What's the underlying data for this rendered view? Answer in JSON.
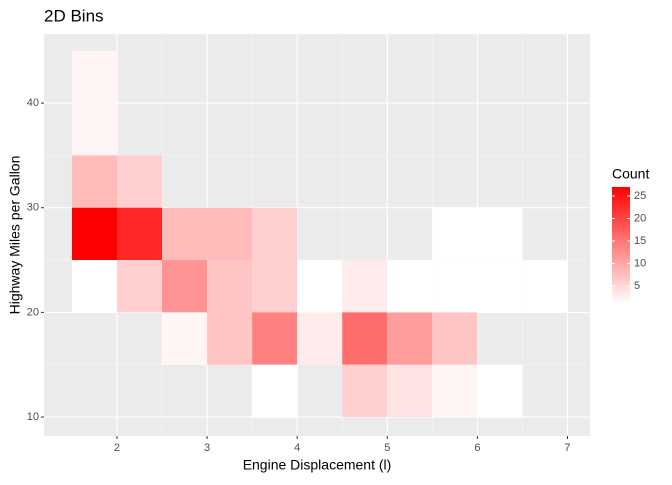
{
  "chart_data": {
    "type": "bin2d",
    "title": "2D Bins",
    "x_label": "Engine Displacement (l)",
    "y_label": "Highway Miles per Gallon",
    "xlim": [
      1.19,
      7.25
    ],
    "ylim": [
      8.19,
      46.6
    ],
    "xticks": [
      2,
      3,
      4,
      5,
      6,
      7
    ],
    "yticks": [
      10,
      20,
      30,
      40
    ],
    "grid": true,
    "legend_title": "Count",
    "fill_lim": [
      1,
      27
    ],
    "fill_ticks": [
      5,
      10,
      15,
      20,
      25
    ],
    "color_low": "#ffffff",
    "color_high": "#ff0000",
    "cells": [
      {
        "x": [
          1.5,
          2
        ],
        "y": [
          40,
          45
        ],
        "count": 2
      },
      {
        "x": [
          1.5,
          2
        ],
        "y": [
          35,
          40
        ],
        "count": 2
      },
      {
        "x": [
          1.5,
          2
        ],
        "y": [
          30,
          35
        ],
        "count": 8
      },
      {
        "x": [
          2,
          2.5
        ],
        "y": [
          30,
          35
        ],
        "count": 6
      },
      {
        "x": [
          1.5,
          2
        ],
        "y": [
          25,
          30
        ],
        "count": 27
      },
      {
        "x": [
          2,
          2.5
        ],
        "y": [
          25,
          30
        ],
        "count": 23
      },
      {
        "x": [
          2.5,
          3
        ],
        "y": [
          25,
          30
        ],
        "count": 8
      },
      {
        "x": [
          3,
          3.5
        ],
        "y": [
          25,
          30
        ],
        "count": 8
      },
      {
        "x": [
          3.5,
          4
        ],
        "y": [
          25,
          30
        ],
        "count": 6
      },
      {
        "x": [
          5.5,
          6
        ],
        "y": [
          25,
          30
        ],
        "count": 1
      },
      {
        "x": [
          6,
          6.5
        ],
        "y": [
          25,
          30
        ],
        "count": 1
      },
      {
        "x": [
          1.5,
          2
        ],
        "y": [
          20,
          25
        ],
        "count": 1
      },
      {
        "x": [
          2,
          2.5
        ],
        "y": [
          20,
          25
        ],
        "count": 6
      },
      {
        "x": [
          2.5,
          3
        ],
        "y": [
          20,
          25
        ],
        "count": 12
      },
      {
        "x": [
          3,
          3.5
        ],
        "y": [
          20,
          25
        ],
        "count": 7
      },
      {
        "x": [
          3.5,
          4
        ],
        "y": [
          20,
          25
        ],
        "count": 6
      },
      {
        "x": [
          4,
          4.5
        ],
        "y": [
          20,
          25
        ],
        "count": 1
      },
      {
        "x": [
          4.5,
          5
        ],
        "y": [
          20,
          25
        ],
        "count": 3
      },
      {
        "x": [
          5,
          5.5
        ],
        "y": [
          20,
          25
        ],
        "count": 1
      },
      {
        "x": [
          5.5,
          6
        ],
        "y": [
          20,
          25
        ],
        "count": 1
      },
      {
        "x": [
          6,
          6.5
        ],
        "y": [
          20,
          25
        ],
        "count": 1
      },
      {
        "x": [
          6.5,
          7
        ],
        "y": [
          20,
          25
        ],
        "count": 1
      },
      {
        "x": [
          2.5,
          3
        ],
        "y": [
          15,
          20
        ],
        "count": 2
      },
      {
        "x": [
          3,
          3.5
        ],
        "y": [
          15,
          20
        ],
        "count": 7
      },
      {
        "x": [
          3.5,
          4
        ],
        "y": [
          15,
          20
        ],
        "count": 14
      },
      {
        "x": [
          4,
          4.5
        ],
        "y": [
          15,
          20
        ],
        "count": 3
      },
      {
        "x": [
          4.5,
          5
        ],
        "y": [
          15,
          20
        ],
        "count": 16
      },
      {
        "x": [
          5,
          5.5
        ],
        "y": [
          15,
          20
        ],
        "count": 11
      },
      {
        "x": [
          5.5,
          6
        ],
        "y": [
          15,
          20
        ],
        "count": 7
      },
      {
        "x": [
          3.5,
          4
        ],
        "y": [
          10,
          15
        ],
        "count": 1
      },
      {
        "x": [
          4.5,
          5
        ],
        "y": [
          10,
          15
        ],
        "count": 6
      },
      {
        "x": [
          5,
          5.5
        ],
        "y": [
          10,
          15
        ],
        "count": 4
      },
      {
        "x": [
          5.5,
          6
        ],
        "y": [
          10,
          15
        ],
        "count": 2
      },
      {
        "x": [
          6,
          6.5
        ],
        "y": [
          10,
          15
        ],
        "count": 1
      }
    ]
  }
}
